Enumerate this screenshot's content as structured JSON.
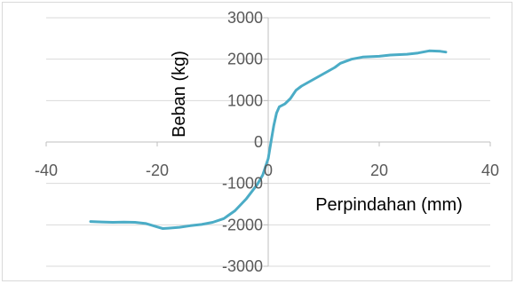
{
  "chart_data": {
    "type": "line",
    "title": "",
    "xlabel": "Perpindahan (mm)",
    "ylabel": "Beban (kg)",
    "xlim": [
      -40,
      40
    ],
    "ylim": [
      -3000,
      3000
    ],
    "x_ticks": [
      "-40",
      "-20",
      "0",
      "20",
      "40"
    ],
    "y_ticks": [
      "-3000",
      "-2000",
      "-1000",
      "0",
      "1000",
      "2000",
      "3000"
    ],
    "grid": "horizontal",
    "legend": "none",
    "series": [
      {
        "color": "#4bacc6",
        "points": [
          [
            -32,
            -1920
          ],
          [
            -30,
            -1930
          ],
          [
            -28,
            -1940
          ],
          [
            -26,
            -1935
          ],
          [
            -24,
            -1940
          ],
          [
            -22,
            -1970
          ],
          [
            -20,
            -2050
          ],
          [
            -19,
            -2090
          ],
          [
            -18,
            -2080
          ],
          [
            -16,
            -2060
          ],
          [
            -14,
            -2020
          ],
          [
            -12,
            -1990
          ],
          [
            -10,
            -1940
          ],
          [
            -8,
            -1850
          ],
          [
            -6,
            -1660
          ],
          [
            -4,
            -1380
          ],
          [
            -2,
            -1030
          ],
          [
            -1,
            -800
          ],
          [
            -0.5,
            -600
          ],
          [
            0,
            -400
          ],
          [
            0.5,
            0
          ],
          [
            1,
            400
          ],
          [
            1.5,
            700
          ],
          [
            2,
            850
          ],
          [
            3,
            920
          ],
          [
            4,
            1050
          ],
          [
            5,
            1250
          ],
          [
            6,
            1350
          ],
          [
            8,
            1500
          ],
          [
            10,
            1650
          ],
          [
            12,
            1800
          ],
          [
            13,
            1900
          ],
          [
            15,
            2000
          ],
          [
            17,
            2050
          ],
          [
            20,
            2070
          ],
          [
            22,
            2100
          ],
          [
            25,
            2120
          ],
          [
            27,
            2150
          ],
          [
            29,
            2200
          ],
          [
            31,
            2190
          ],
          [
            32,
            2170
          ]
        ]
      }
    ]
  }
}
